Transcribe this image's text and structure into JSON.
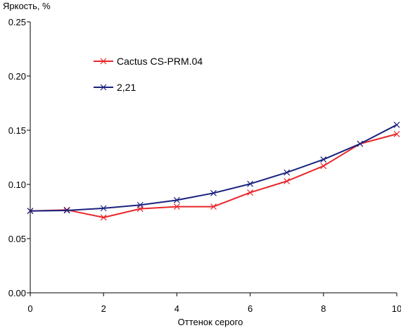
{
  "chart_data": {
    "type": "line",
    "title": "",
    "ylabel": "Яркость, %",
    "xlabel": "Оттенок серого",
    "xlim": [
      0,
      10
    ],
    "ylim": [
      0,
      0.25
    ],
    "x_ticks": [
      0,
      2,
      4,
      6,
      8,
      10
    ],
    "y_ticks": [
      "0.00",
      "0.05",
      "0.10",
      "0.15",
      "0.20",
      "0.25"
    ],
    "grid": false,
    "legend_position": "top-left",
    "series": [
      {
        "name": "Cactus CS-PRM.04",
        "color": "#e8262a",
        "x": [
          0,
          1,
          2,
          3,
          4,
          5,
          6,
          7,
          8,
          9,
          10
        ],
        "values": [
          0.0755,
          0.0765,
          0.0695,
          0.0775,
          0.0795,
          0.0795,
          0.0925,
          0.103,
          0.117,
          0.1375,
          0.1465
        ]
      },
      {
        "name": "2,21",
        "color": "#1a237e",
        "x": [
          0,
          1,
          2,
          3,
          4,
          5,
          6,
          7,
          8,
          9,
          10
        ],
        "values": [
          0.0755,
          0.076,
          0.078,
          0.081,
          0.0855,
          0.092,
          0.1005,
          0.111,
          0.123,
          0.1375,
          0.155
        ]
      }
    ]
  }
}
